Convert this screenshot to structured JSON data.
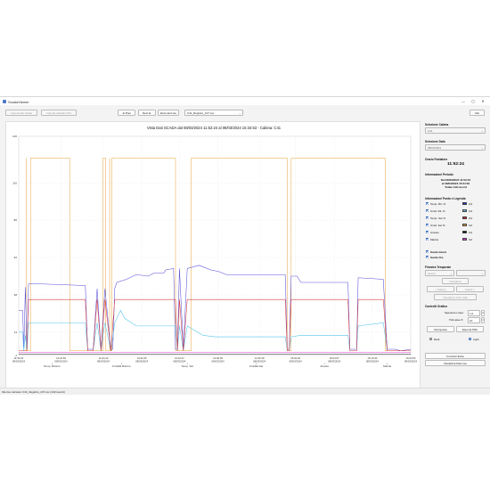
{
  "window": {
    "title": "ScadaViewer",
    "controls": {
      "minimize": "—",
      "maximize": "▢",
      "close": "✕"
    }
  },
  "toolbar": {
    "import_file": "Importa file ricetta",
    "import_cabins": "Importa cartella CSV",
    "prev": "◄ Prec",
    "next": "Next ►",
    "live_label": "Ecco dei Live",
    "file_selected": "C41_Registro_107.csv",
    "info": "Info"
  },
  "chart": {
    "title": "Vista Dati SCADA dal 08/03/2024 11:52:24 al 08/03/2024 15:34:53 - Cabina: C41"
  },
  "chart_data": {
    "type": "line",
    "title": "Vista Dati SCADA dal 08/03/2024 11:52:24 al 08/03/2024 15:34:53 - Cabina: C41",
    "xlabel": "",
    "ylabel": "",
    "ylim": [
      -1,
      140
    ],
    "y_ticks": [
      "-1",
      "14",
      "38",
      "62",
      "86",
      "110",
      "140"
    ],
    "x_ticks": [
      {
        "time": "11:52:24",
        "date": "08/03/2024",
        "pos": 0.0
      },
      {
        "time": "12:22:53",
        "date": "08/03/2024",
        "pos": 0.108
      },
      {
        "time": "12:44:13",
        "date": "08/03/2024",
        "pos": 0.216
      },
      {
        "time": "13:02:25",
        "date": "08/03/2024",
        "pos": 0.314
      },
      {
        "time": "13:42:47",
        "date": "08/03/2024",
        "pos": 0.41
      },
      {
        "time": "14:06:39",
        "date": "08/03/2024",
        "pos": 0.508
      },
      {
        "time": "14:46:18",
        "date": "08/03/2024",
        "pos": 0.614
      },
      {
        "time": "15:02:20",
        "date": "08/03/2024",
        "pos": 0.706
      },
      {
        "time": "15:04:37",
        "date": "08/03/2024",
        "pos": 0.805
      },
      {
        "time": "15:16:30",
        "date": "08/03/2024",
        "pos": 0.902
      },
      {
        "time": "15:34:53",
        "date": "08/03/2024",
        "pos": 1.0
      }
    ],
    "legend_labels": [
      {
        "text": "Temp. Ritorno",
        "pos": 0.085
      },
      {
        "text": "Umidità Ritorno",
        "pos": 0.262
      },
      {
        "text": "Temp. Set",
        "pos": 0.43
      },
      {
        "text": "Umidità Set",
        "pos": 0.606
      },
      {
        "text": "Arresto",
        "pos": 0.78
      },
      {
        "text": "Marcia",
        "pos": 0.94
      }
    ],
    "series": [
      {
        "name": "Temp. Rit. %",
        "color": "#5a52d8",
        "points": [
          [
            0.0,
            28
          ],
          [
            0.01,
            28
          ],
          [
            0.013,
            3
          ],
          [
            0.017,
            43
          ],
          [
            0.021,
            3
          ],
          [
            0.025,
            45
          ],
          [
            0.06,
            45
          ],
          [
            0.17,
            44
          ],
          [
            0.176,
            3
          ],
          [
            0.19,
            3
          ],
          [
            0.2,
            42
          ],
          [
            0.21,
            3
          ],
          [
            0.22,
            42
          ],
          [
            0.235,
            3
          ],
          [
            0.24,
            3
          ],
          [
            0.245,
            42
          ],
          [
            0.25,
            46
          ],
          [
            0.275,
            48
          ],
          [
            0.3,
            51
          ],
          [
            0.33,
            50
          ],
          [
            0.345,
            52
          ],
          [
            0.37,
            52
          ],
          [
            0.375,
            54
          ],
          [
            0.395,
            55
          ],
          [
            0.4,
            3
          ],
          [
            0.405,
            3
          ],
          [
            0.41,
            55
          ],
          [
            0.42,
            3
          ],
          [
            0.43,
            55
          ],
          [
            0.46,
            57
          ],
          [
            0.49,
            54
          ],
          [
            0.51,
            53
          ],
          [
            0.53,
            51
          ],
          [
            0.68,
            51
          ],
          [
            0.685,
            3
          ],
          [
            0.69,
            3
          ],
          [
            0.695,
            50
          ],
          [
            0.71,
            50
          ],
          [
            0.72,
            46
          ],
          [
            0.84,
            46
          ],
          [
            0.845,
            3
          ],
          [
            0.862,
            3
          ],
          [
            0.866,
            49
          ],
          [
            0.93,
            48
          ],
          [
            0.94,
            3
          ],
          [
            0.96,
            3
          ],
          [
            0.975,
            2
          ],
          [
            1.0,
            3
          ]
        ]
      },
      {
        "name": "Umid. Rit. %",
        "color": "#56c3ee",
        "points": [
          [
            0.0,
            14
          ],
          [
            0.01,
            14
          ],
          [
            0.013,
            2
          ],
          [
            0.017,
            12
          ],
          [
            0.021,
            2
          ],
          [
            0.025,
            20
          ],
          [
            0.06,
            20
          ],
          [
            0.17,
            20
          ],
          [
            0.176,
            2
          ],
          [
            0.19,
            2
          ],
          [
            0.2,
            20
          ],
          [
            0.21,
            2
          ],
          [
            0.22,
            20
          ],
          [
            0.235,
            2
          ],
          [
            0.245,
            20
          ],
          [
            0.26,
            28
          ],
          [
            0.27,
            23
          ],
          [
            0.3,
            18
          ],
          [
            0.4,
            18
          ],
          [
            0.405,
            2
          ],
          [
            0.41,
            18
          ],
          [
            0.42,
            2
          ],
          [
            0.43,
            18
          ],
          [
            0.47,
            12
          ],
          [
            0.5,
            11
          ],
          [
            0.68,
            11
          ],
          [
            0.685,
            2
          ],
          [
            0.69,
            2
          ],
          [
            0.695,
            11
          ],
          [
            0.72,
            12
          ],
          [
            0.84,
            12
          ],
          [
            0.845,
            2
          ],
          [
            0.862,
            2
          ],
          [
            0.866,
            18
          ],
          [
            0.93,
            20
          ],
          [
            0.94,
            2
          ],
          [
            0.96,
            2
          ],
          [
            1.0,
            2
          ]
        ]
      },
      {
        "name": "Temp. Set %",
        "color": "#d83b3b",
        "points": [
          [
            0.0,
            2
          ],
          [
            0.017,
            2
          ],
          [
            0.021,
            2
          ],
          [
            0.025,
            35
          ],
          [
            0.17,
            35
          ],
          [
            0.176,
            2
          ],
          [
            0.19,
            2
          ],
          [
            0.2,
            35
          ],
          [
            0.21,
            2
          ],
          [
            0.22,
            35
          ],
          [
            0.235,
            2
          ],
          [
            0.245,
            35
          ],
          [
            0.4,
            35
          ],
          [
            0.405,
            2
          ],
          [
            0.41,
            35
          ],
          [
            0.42,
            2
          ],
          [
            0.43,
            35
          ],
          [
            0.68,
            35
          ],
          [
            0.685,
            2
          ],
          [
            0.69,
            2
          ],
          [
            0.695,
            35
          ],
          [
            0.84,
            35
          ],
          [
            0.845,
            2
          ],
          [
            0.862,
            2
          ],
          [
            0.866,
            35
          ],
          [
            0.93,
            35
          ],
          [
            0.94,
            2
          ],
          [
            1.0,
            2
          ]
        ]
      },
      {
        "name": "Umid. Set %",
        "color": "#e7a13a",
        "points": [
          [
            0.0,
            2
          ],
          [
            0.017,
            2
          ],
          [
            0.018,
            2
          ],
          [
            0.019,
            140
          ],
          [
            0.0195,
            2
          ],
          [
            0.025,
            2
          ],
          [
            0.028,
            2
          ],
          [
            0.03,
            2
          ],
          [
            0.04,
            2
          ],
          [
            0.045,
            2
          ],
          [
            0.05,
            2
          ],
          [
            0.055,
            2
          ],
          [
            0.06,
            2
          ],
          [
            0.065,
            2
          ],
          [
            0.07,
            2
          ],
          [
            0.075,
            2
          ],
          [
            0.08,
            2
          ],
          [
            0.085,
            2
          ],
          [
            0.09,
            2
          ],
          [
            0.095,
            2
          ],
          [
            0.1,
            2
          ],
          [
            0.105,
            2
          ],
          [
            0.11,
            2
          ],
          [
            0.115,
            2
          ],
          [
            0.12,
            2
          ],
          [
            0.125,
            2
          ],
          [
            0.13,
            2
          ],
          [
            0.135,
            2
          ],
          [
            0.14,
            2
          ],
          [
            0.145,
            2
          ],
          [
            0.15,
            2
          ],
          [
            0.155,
            2
          ],
          [
            0.16,
            2
          ],
          [
            0.165,
            2
          ],
          [
            0.17,
            2
          ],
          [
            0.176,
            2
          ],
          [
            0.19,
            2
          ],
          [
            0.2,
            2
          ],
          [
            0.21,
            2
          ],
          [
            0.22,
            2
          ],
          [
            0.235,
            2
          ],
          [
            0.24,
            2
          ],
          [
            0.245,
            2
          ],
          [
            0.25,
            2
          ]
        ]
      },
      {
        "name": "Arresto",
        "color": "#111111",
        "points": [
          [
            0.0,
            0
          ],
          [
            1.0,
            0
          ]
        ]
      },
      {
        "name": "Marcia",
        "color": "#d63bd6",
        "points": [
          [
            0.0,
            1
          ],
          [
            1.0,
            1
          ]
        ]
      }
    ],
    "orange_pulses": [
      [
        0.03,
        0.13
      ],
      [
        0.215,
        0.222
      ],
      [
        0.238,
        0.4
      ],
      [
        0.44,
        0.685
      ],
      [
        0.695,
        0.935
      ]
    ]
  },
  "side": {
    "cabin_section": "Selezione Cabina",
    "cabin_value": "C41",
    "date_section": "Selezione Data",
    "date_value": "08/03/2024",
    "cursor_section": "Orario Puntatore",
    "cursor_value": "11:52:24",
    "period_section": "Informazioni Periodo",
    "period_line1": "Dal 08/03/2024 11:52:24",
    "period_line2": "al 08/03/2024 15:34:53",
    "period_line3": "Totale 149 record",
    "legend_section": "Informazioni Punto e Legenda",
    "legend_items": [
      {
        "label": "Temp. Rit. %",
        "value": "0,0",
        "color": "#1c2fd0"
      },
      {
        "label": "Umid. Rit. %",
        "value": "0,0",
        "color": "#56c3ee"
      },
      {
        "label": "Temp. Set %",
        "value": "0,0",
        "color": "#c81e1e"
      },
      {
        "label": "Umid. Set %",
        "value": "0,0",
        "color": "#e7a13a"
      },
      {
        "label": "Arresto",
        "value": "0,0",
        "color": "#111111"
      },
      {
        "label": "Marcia",
        "value": "0,0",
        "color": "#d63bd6"
      }
    ],
    "guide_x": "Guide Giorni",
    "guide_y": "Guide Ore",
    "window_section": "Finestra Temporale",
    "window_value": "Giorno",
    "visualize_btn": "Visualizza",
    "prev_btn": "< Indietro",
    "next_btn": "Avanti >",
    "all_btn": "Visualizza Tutti i Dati",
    "controls_section": "Controlli Grafico",
    "line_thickness_label": "Spessore Linee:",
    "line_thickness_value": "1,0",
    "tick_label": "Tick asse X:",
    "tick_value": "10",
    "reset_btn": "Reimposta",
    "export_btn": "Esporta PDF",
    "dark_label": "Dark",
    "light_label": "Light",
    "extra_btn": "Funzioni Extra",
    "view_live_btn": "Visualizza Dati Live"
  },
  "status": {
    "text": "File live caricato: C41_Registro_107.csv (149 record)"
  }
}
